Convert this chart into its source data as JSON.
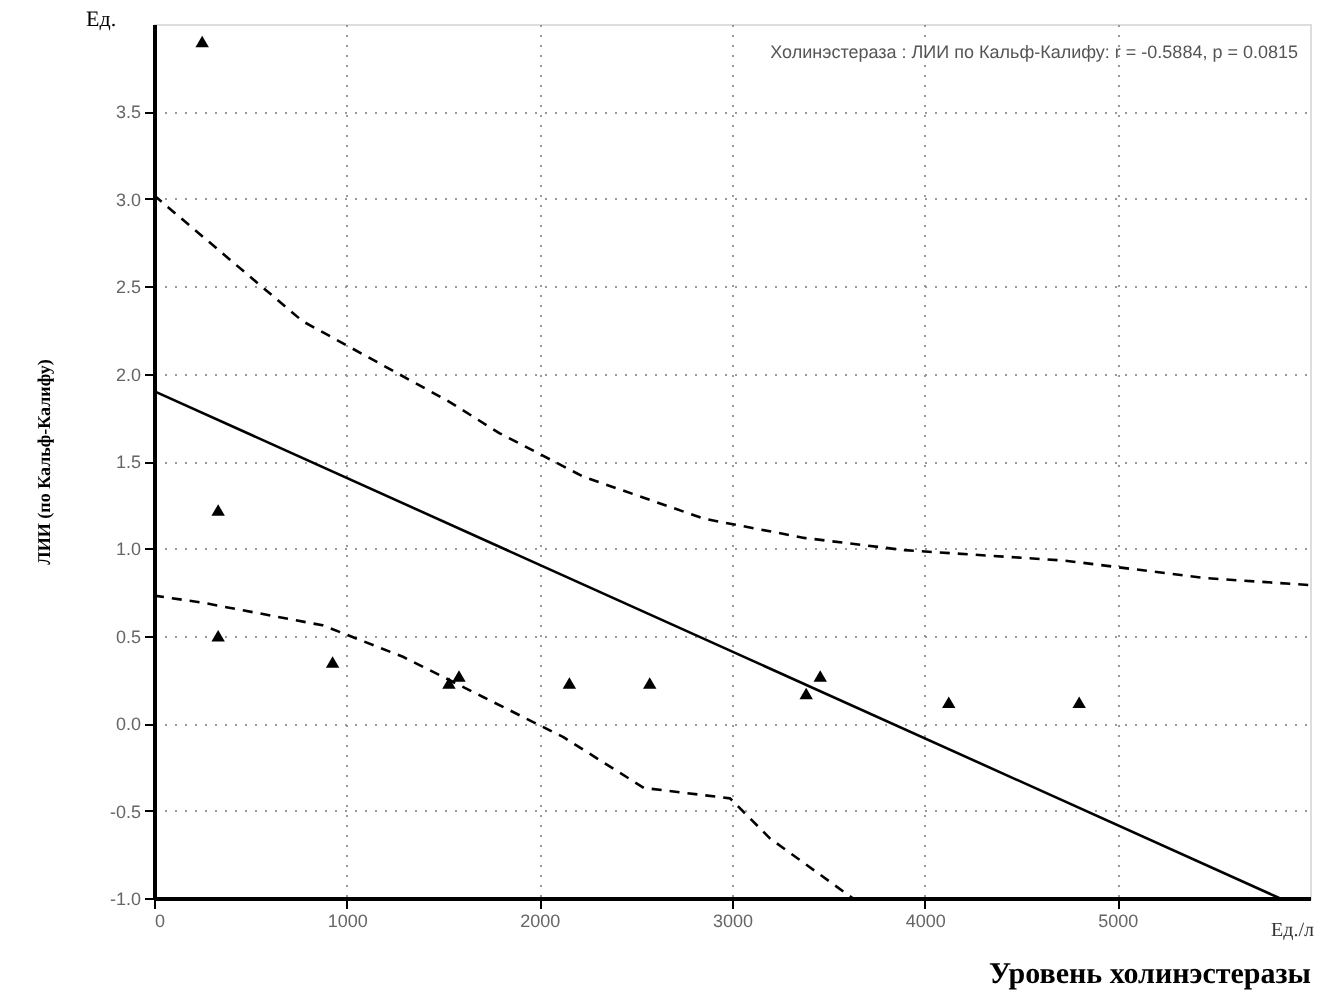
{
  "chart_data": {
    "type": "scatter",
    "xlabel": "Уровень холинэстеразы",
    "ylabel": "ЛИИ (по Кальф-Калифу)",
    "annotations": [
      "Холинэстераза : ЛИИ по Кальф-Калифу: r = -0.5884, p = 0.0815",
      "Ед.",
      "Ед./л"
    ],
    "xlim": [
      0,
      6000
    ],
    "xticks": [
      0,
      1000,
      2000,
      3000,
      4000,
      5000
    ],
    "ylim": [
      -1,
      4
    ],
    "yticks": [
      {
        "value": -1,
        "label": "-1.0"
      },
      -0.5,
      {
        "value": 0,
        "label": "0.0"
      },
      0.5,
      {
        "value": 1,
        "label": "1.0"
      },
      1.5,
      {
        "value": 2,
        "label": "2.0"
      },
      2.5,
      {
        "value": 3,
        "label": "3.0"
      },
      3.5
    ],
    "grid": true,
    "series": [
      {
        "marker": "triangle",
        "color": "#000000",
        "x": [
          250,
          333,
          333,
          927,
          1531,
          1583,
          2156,
          2573,
          3385,
          3458,
          4125,
          4802
        ],
        "values": [
          3.9,
          1.22,
          0.5,
          0.35,
          0.23,
          0.27,
          0.23,
          0.23,
          0.17,
          0.27,
          0.12,
          0.12
        ]
      },
      {
        "type": "line",
        "marker": "none",
        "color": "#000000",
        "line_style": "solid",
        "x": [
          0,
          5840
        ],
        "values": [
          1.9,
          -1
        ]
      },
      {
        "type": "line",
        "color": "#000000",
        "line_style": "dashed",
        "marker": "none",
        "x": [
          0,
          771,
          1531,
          1792,
          2229,
          2854,
          3375,
          3896,
          4729,
          5458,
          6000
        ],
        "values": [
          3.02,
          2.3,
          1.84,
          1.66,
          1.41,
          1.17,
          1.06,
          0.99,
          0.93,
          0.83,
          0.79
        ]
      },
      {
        "type": "line",
        "color": "#000000",
        "line_style": "dashed",
        "marker": "none",
        "x": [
          0,
          250,
          875,
          1292,
          1708,
          2125,
          2542,
          2990,
          3198,
          3625
        ],
        "values": [
          0.73,
          0.69,
          0.56,
          0.38,
          0.15,
          -0.08,
          -0.37,
          -0.43,
          -0.66,
          -1
        ]
      }
    ]
  }
}
